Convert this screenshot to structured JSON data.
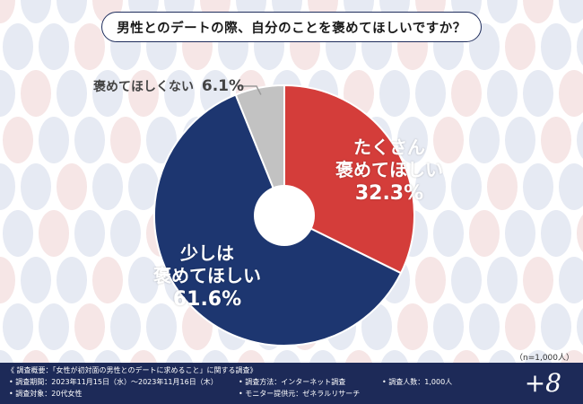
{
  "title": "男性とのデートの際、自分のことを褒めてほしいですか？",
  "colors": {
    "slice_1": "#d43d3a",
    "slice_2": "#1d3670",
    "slice_3": "#c2c2c2",
    "footer_bg": "#1d2a58"
  },
  "chart_data": {
    "type": "pie",
    "slices": [
      {
        "label": "たくさん褒めてほしい",
        "value": 32.3
      },
      {
        "label": "少しは褒めてほしい",
        "value": 61.6
      },
      {
        "label": "褒めてほしくない",
        "value": 6.1
      }
    ],
    "labels": {
      "s1_line1": "たくさん",
      "s1_line2": "褒めてほしい",
      "s1_pct": "32.3%",
      "s2_line1": "少しは",
      "s2_line2": "褒めてほしい",
      "s2_pct": "61.6%",
      "s3_text": "褒めてほしくない",
      "s3_pct": "6.1%"
    },
    "note": "（n=1,000人）"
  },
  "footer": {
    "summary": "《 調査概要：「女性が初対面の男性とのデートに求めること」に関する調査》",
    "period": "• 調査期間：2023年11月15日（水）〜2023年11月16日（木）",
    "target": "• 調査対象：20代女性",
    "method": "• 調査方法：インターネット調査",
    "provider": "• モニター提供元：ゼネラルリサーチ",
    "count": "• 調査人数：1,000人",
    "logo": "+8"
  }
}
